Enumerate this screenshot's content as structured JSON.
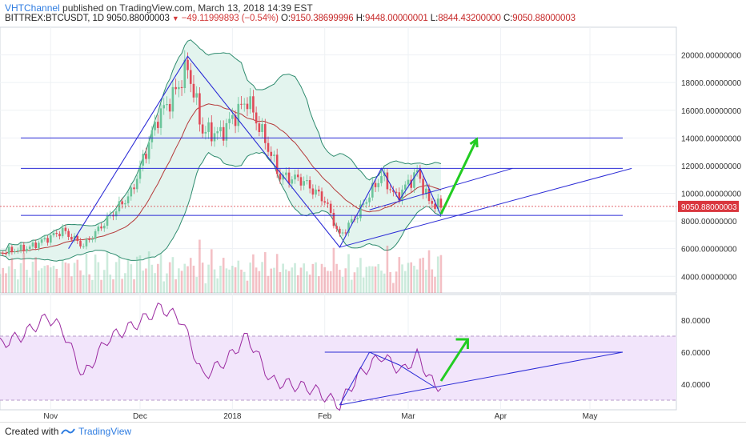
{
  "header": {
    "channel": "VHTChannel",
    "published_text": "published on TradingView.com, March 13, 2018 14:39 EST",
    "symbol_text": "BITTREX:BTCUSDT, 1D",
    "last_price": "9050.88000003",
    "change_arrow": "▼",
    "change_text": "−49.11999893 (−0.54%)",
    "o_label": "O:",
    "o_value": "9150.38699996",
    "h_label": "H:",
    "h_value": "9448.00000001",
    "l_label": "L:",
    "l_value": "8844.43200000",
    "c_label": "C:",
    "c_value": "9050.88000003"
  },
  "footer": {
    "created_with": "Created with",
    "brand": "TradingView"
  },
  "colors": {
    "up": "#6cc59b",
    "down": "#e04a58",
    "band": "#2e8b6e",
    "band_fill": "#e3f4ee",
    "basis": "#b53a3a",
    "drawing": "#2b2bd6",
    "green_arrow": "#22cc22",
    "rsi": "#9b2aa0",
    "rsi_band": "#f2e5fb",
    "price_badge": "#d9363e"
  },
  "chart_data": [
    {
      "type": "candlestick",
      "symbol": "BITTREX:BTCUSDT",
      "interval": "1D",
      "ylim": [
        2800,
        22000
      ],
      "ticks": [
        4000,
        6000,
        8000,
        10000,
        12000,
        14000,
        16000,
        18000,
        20000
      ],
      "tick_labels": [
        "4000.00000000",
        "6000.00000000",
        "8000.00000000",
        "10000.00000000",
        "12000.00000000",
        "14000.00000000",
        "16000.00000000",
        "18000.00000000",
        "20000.00000000"
      ],
      "current_price_label": "9050.88000003",
      "current_price": 9050.88,
      "x_tick_labels": [
        "Nov",
        "Dec",
        "2018",
        "Feb",
        "Mar",
        "Apr",
        "May"
      ],
      "x_tick_dates": [
        "2017-11-01",
        "2017-12-01",
        "2018-01-01",
        "2018-02-01",
        "2018-03-01",
        "2018-04-01",
        "2018-05-01"
      ],
      "x_range": [
        "2017-10-15",
        "2018-05-30"
      ],
      "close_series": {
        "dates": [
          "2017-10-15",
          "2017-10-25",
          "2017-11-05",
          "2017-11-12",
          "2017-11-20",
          "2017-11-28",
          "2017-12-07",
          "2017-12-12",
          "2017-12-17",
          "2017-12-22",
          "2017-12-28",
          "2018-01-06",
          "2018-01-12",
          "2018-01-17",
          "2018-01-24",
          "2018-02-01",
          "2018-02-06",
          "2018-02-12",
          "2018-02-20",
          "2018-02-25",
          "2018-03-04",
          "2018-03-08",
          "2018-03-12"
        ],
        "values": [
          5700,
          6100,
          7300,
          6200,
          8100,
          10000,
          15500,
          17000,
          19100,
          14500,
          14300,
          16800,
          13800,
          11200,
          11000,
          9500,
          6900,
          8500,
          11300,
          9700,
          11500,
          9400,
          9050
        ]
      },
      "horizontal_lines": [
        14000,
        11800,
        8400
      ],
      "trendline_channel_zigzag_note": "",
      "volume": true
    },
    {
      "type": "line",
      "indicator": "RSI",
      "ylim": [
        24,
        96
      ],
      "ticks": [
        40,
        60,
        80
      ],
      "tick_labels": [
        "40.0000",
        "60.0000",
        "80.0000"
      ],
      "band": [
        30,
        70
      ],
      "values_dates": [
        "2017-10-15",
        "2017-10-22",
        "2017-10-31",
        "2017-11-05",
        "2017-11-12",
        "2017-11-20",
        "2017-12-01",
        "2017-12-08",
        "2017-12-15",
        "2017-12-22",
        "2017-12-30",
        "2018-01-06",
        "2018-01-14",
        "2018-01-20",
        "2018-01-28",
        "2018-02-06",
        "2018-02-12",
        "2018-02-20",
        "2018-02-27",
        "2018-03-04",
        "2018-03-10",
        "2018-03-12"
      ],
      "values": [
        65,
        70,
        82,
        74,
        45,
        68,
        79,
        88,
        80,
        45,
        55,
        70,
        42,
        40,
        37,
        27,
        45,
        58,
        48,
        58,
        38,
        40
      ],
      "horizontal_line": 60
    }
  ]
}
